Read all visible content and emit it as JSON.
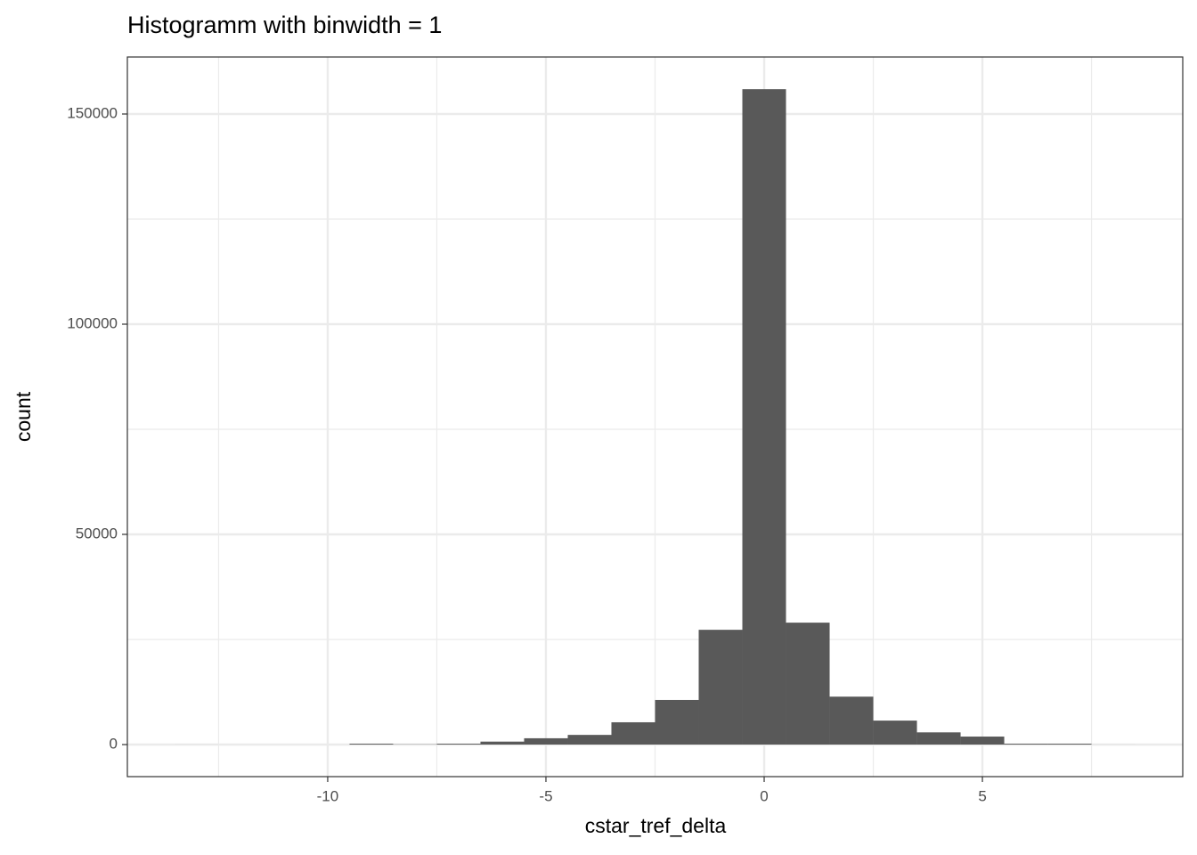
{
  "chart_data": {
    "type": "histogram",
    "title": "Histogramm with binwidth = 1",
    "x_label": "cstar_tref_delta",
    "y_label": "count",
    "bins": [
      -13.5,
      -12.5,
      -11.5,
      -10.5,
      -9.5,
      -8.5,
      -7.5,
      -6.5,
      -5.5,
      -4.5,
      -3.5,
      -2.5,
      -1.5,
      -0.5,
      0.5,
      1.5,
      2.5,
      3.5,
      4.5,
      5.5,
      6.5,
      7.5,
      8.5
    ],
    "values": [
      5,
      0,
      0,
      0,
      200,
      50,
      200,
      700,
      1500,
      2300,
      5300,
      10600,
      27300,
      155900,
      29000,
      11400,
      5700,
      2900,
      1900,
      200,
      200,
      5
    ],
    "color": "#595959",
    "xlim": [
      -14.59,
      9.59
    ],
    "xticks": [
      -10,
      -5,
      0,
      5
    ],
    "ylim": [
      -7627,
      163559
    ],
    "yticks": [
      0,
      50000,
      100000,
      150000
    ],
    "grid": true
  }
}
